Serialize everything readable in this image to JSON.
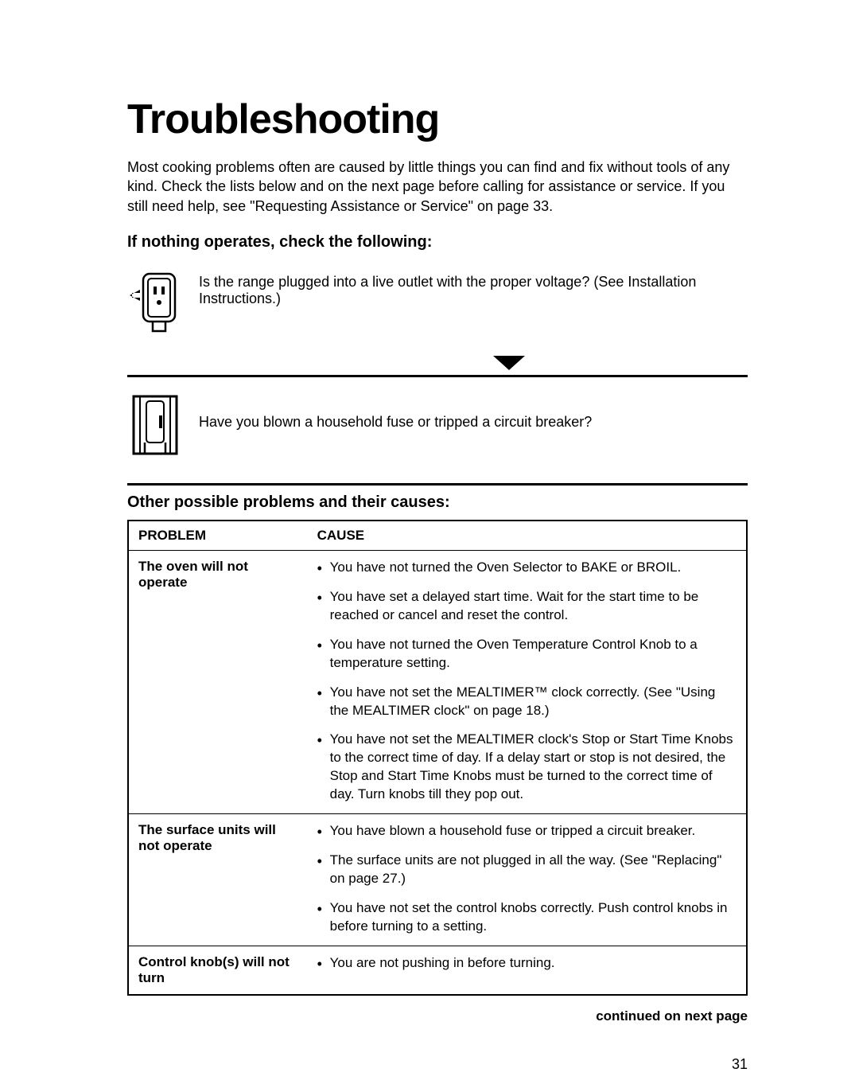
{
  "title": "Troubleshooting",
  "intro": "Most cooking problems often are caused by little things you can find and fix without tools of any kind. Check the lists below and on the next page before calling for assistance or service. If you still need help, see \"Requesting Assistance or Service\" on page 33.",
  "section1_heading": "If nothing operates, check the following:",
  "check1": "Is the range plugged into a live outlet with the proper voltage? (See Installation Instructions.)",
  "check2": "Have you blown a household fuse or tripped a circuit breaker?",
  "section2_heading": "Other possible problems and their causes:",
  "columns": {
    "problem": "PROBLEM",
    "cause": "CAUSE"
  },
  "rows": [
    {
      "problem": "The oven will not operate",
      "causes": [
        "You have not turned the Oven Selector to BAKE or BROIL.",
        "You have set a delayed start time. Wait for the start time to be reached or cancel and reset the control.",
        "You have not turned the Oven Temperature Control Knob to a temperature setting.",
        "You have not set the MEALTIMER™ clock correctly. (See \"Using the MEALTIMER clock\" on page 18.)",
        "You have not set the MEALTIMER clock's Stop or Start Time Knobs to the correct time of day. If a delay start or stop is not desired, the Stop and Start Time Knobs must be turned to the correct time of day. Turn knobs till they pop out."
      ]
    },
    {
      "problem": "The surface units will not operate",
      "causes": [
        "You have blown a household fuse or tripped a circuit breaker.",
        "The surface units are not plugged in all the way. (See \"Replacing\" on page 27.)",
        "You have not set the control knobs correctly. Push control knobs in before turning to a setting."
      ]
    },
    {
      "problem": "Control knob(s) will not turn",
      "causes": [
        "You are not pushing in before turning."
      ]
    }
  ],
  "continued": "continued on next page",
  "page_number": "31"
}
